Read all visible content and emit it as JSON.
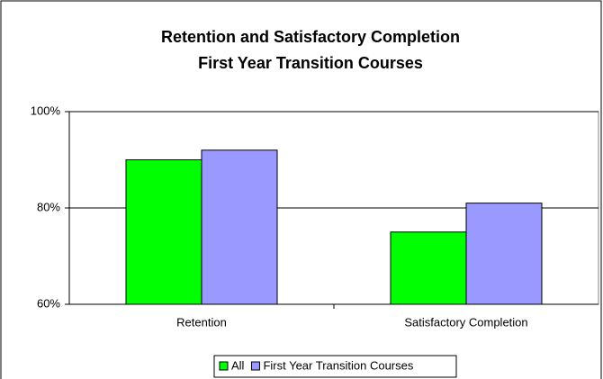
{
  "chart_data": {
    "type": "bar",
    "title": "Retention and Satisfactory Completion",
    "subtitle": "First Year Transition Courses",
    "categories": [
      "Retention",
      "Satisfactory Completion"
    ],
    "series": [
      {
        "name": "All",
        "color": "#00ff00",
        "values": [
          90,
          75
        ]
      },
      {
        "name": "First Year Transition Courses",
        "color": "#9999ff",
        "values": [
          92,
          81
        ]
      }
    ],
    "ylim": [
      60,
      100
    ],
    "yticks": [
      {
        "value": 60,
        "label": "60%"
      },
      {
        "value": 80,
        "label": "80%"
      },
      {
        "value": 100,
        "label": "100%"
      }
    ],
    "grid": true,
    "legend": "bottom"
  }
}
